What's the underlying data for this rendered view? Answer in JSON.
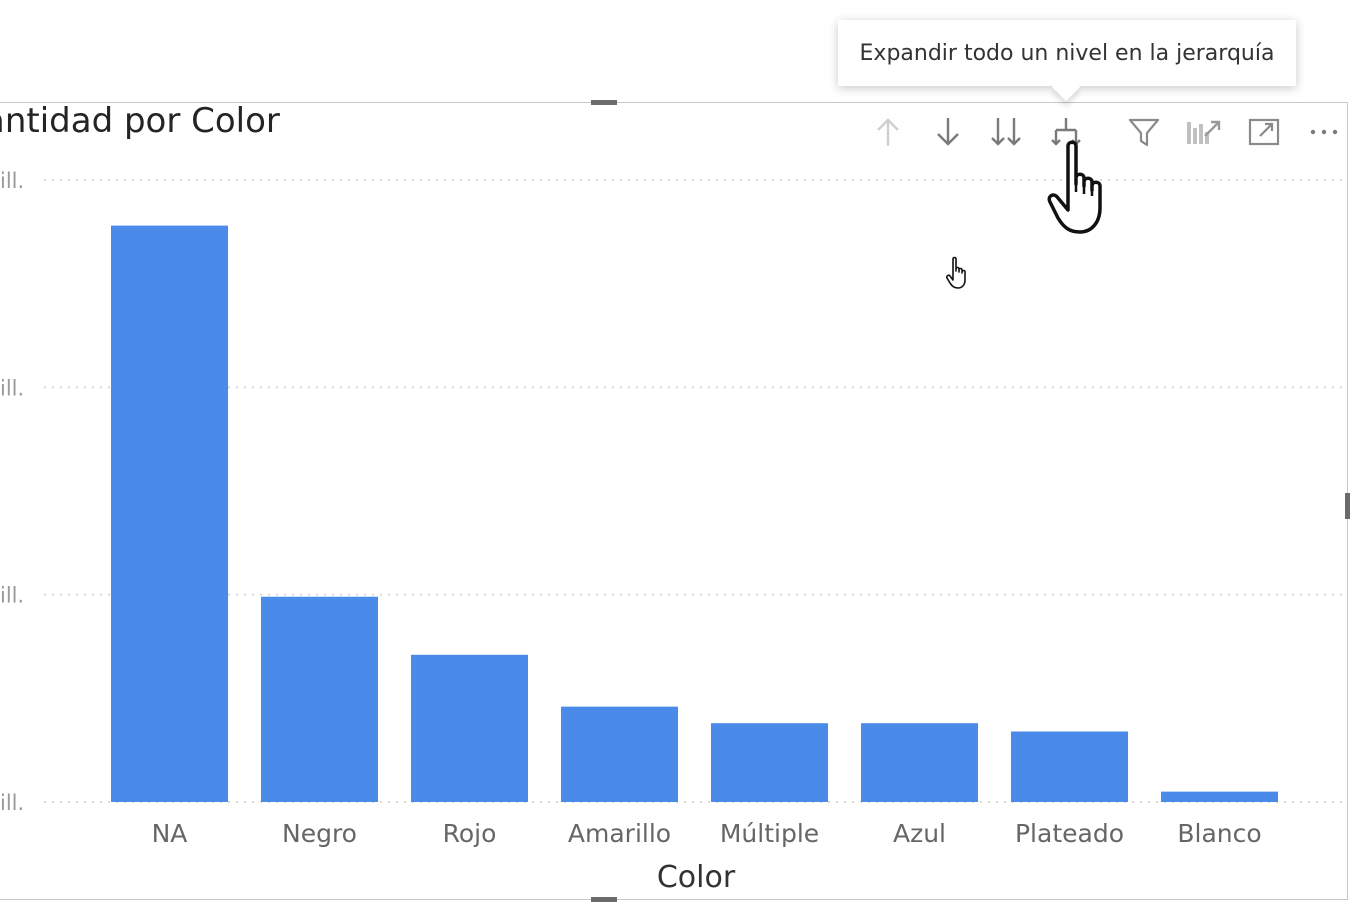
{
  "tooltip": {
    "text": "Expandir todo un nivel en la jerarquía"
  },
  "visual": {
    "title": "antidad por Color",
    "header_icons": [
      {
        "name": "drill-up-icon"
      },
      {
        "name": "drill-down-on-icon"
      },
      {
        "name": "go-to-next-level-icon"
      },
      {
        "name": "expand-hierarchy-icon"
      },
      {
        "name": "filter-icon"
      },
      {
        "name": "focus-mode-pin-icon"
      },
      {
        "name": "focus-mode-icon"
      },
      {
        "name": "more-options-icon"
      }
    ]
  },
  "colors": {
    "bar": "#4a8bea",
    "grid": "#d9d9d9",
    "axis_text": "#666666",
    "icon_disabled": "#c8c8c8",
    "icon": "#7a7a7a"
  },
  "chart_data": {
    "type": "bar",
    "title": "antidad por Color",
    "xlabel": "Color",
    "ylabel": "",
    "categories": [
      "NA",
      "Negro",
      "Rojo",
      "Amarillo",
      "Múltiple",
      "Azul",
      "Plateado",
      "Blanco"
    ],
    "values": [
      2.78,
      0.99,
      0.71,
      0.46,
      0.38,
      0.38,
      0.34,
      0.05
    ],
    "y_tick_labels": [
      "ill.",
      "ill.",
      "ill.",
      "ill."
    ],
    "y_tick_values": [
      0,
      1,
      2,
      3
    ],
    "ylim": [
      0,
      3
    ],
    "grid": true,
    "legend": "none"
  }
}
